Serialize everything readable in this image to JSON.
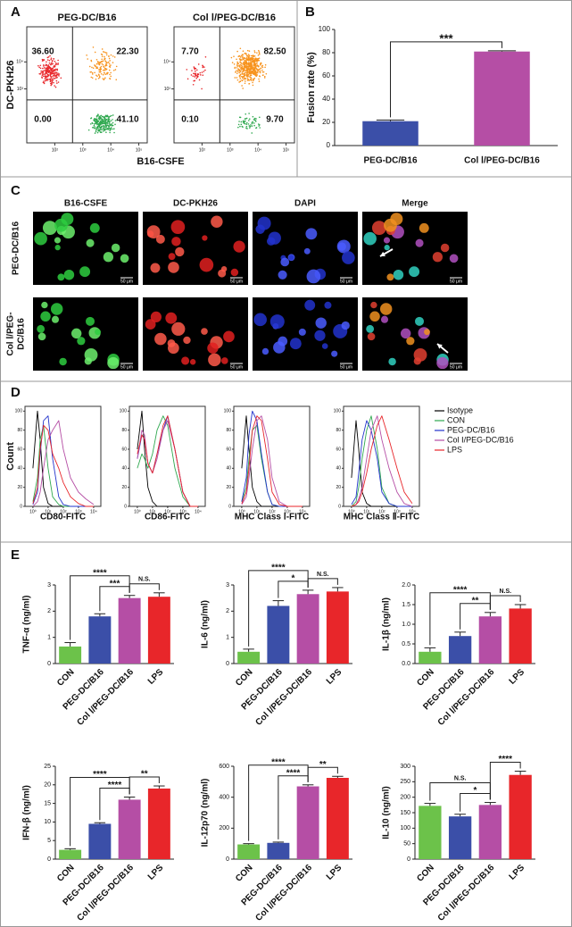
{
  "panel_labels": [
    "A",
    "B",
    "C",
    "D",
    "E"
  ],
  "microscopy": {
    "columns": [
      "B16-CSFE",
      "DC-PKH26",
      "DAPI",
      "Merge"
    ],
    "rows": [
      [
        "PEG-DC/B16"
      ],
      [
        "Col Ⅰ/PEG-",
        "DC/B16"
      ]
    ],
    "scale_bar": "50 μm"
  },
  "chart_data": [
    {
      "type": "flow",
      "title": "PEG-DC/B16",
      "x_label": "B16-CSFE",
      "y_label": "DC-PKH26",
      "log_scale": true,
      "xlim": [
        10,
        200000
      ],
      "ylim": [
        10,
        200000
      ],
      "xticks": [
        {
          "value": 100,
          "label": "10²"
        },
        {
          "value": 1000,
          "label": "10³"
        },
        {
          "value": 10000,
          "label": "10⁴"
        },
        {
          "value": 100000,
          "label": "10⁵"
        }
      ],
      "yticks": [
        {
          "value": 1000,
          "label": "10³"
        },
        {
          "value": 10000,
          "label": "10⁴"
        }
      ],
      "values": [
        36.6,
        22.3,
        0,
        41.1
      ],
      "value_labels": [
        "36.60",
        "22.30",
        "0.00",
        "41.10"
      ],
      "colors": [
        "#e8262a",
        "#f7931e",
        "#999999",
        "#2fa84f"
      ]
    },
    {
      "type": "flow",
      "title": "Col Ⅰ/PEG-DC/B16",
      "log_scale": true,
      "xlim": [
        10,
        200000
      ],
      "ylim": [
        10,
        200000
      ],
      "xticks": [
        {
          "value": 100,
          "label": "10²"
        },
        {
          "value": 1000,
          "label": "10³"
        },
        {
          "value": 10000,
          "label": "10⁴"
        },
        {
          "value": 100000,
          "label": "10⁵"
        }
      ],
      "yticks": [
        {
          "value": 1000,
          "label": "10³"
        },
        {
          "value": 10000,
          "label": "10⁴"
        }
      ],
      "values": [
        7.7,
        82.5,
        0.1,
        9.7
      ],
      "value_labels": [
        "7.70",
        "82.50",
        "0.10",
        "9.70"
      ],
      "colors": [
        "#e8262a",
        "#f7931e",
        "#999999",
        "#2fa84f"
      ]
    },
    {
      "type": "bar",
      "y_label": "Fusion rate (%)",
      "categories": [
        "PEG-DC/B16",
        "Col Ⅰ/PEG-DC/B16"
      ],
      "values": [
        21,
        81
      ],
      "errors": [
        1,
        0.6
      ],
      "colors": [
        "#3b4fa8",
        "#b54ea5"
      ],
      "ylim": [
        0,
        100
      ],
      "yticks": [
        0,
        20,
        40,
        60,
        80,
        100
      ],
      "annotations": [
        {
          "text": "***",
          "from": 0,
          "to": 1
        }
      ]
    },
    {
      "type": "line",
      "x_label": "CD80-FITC",
      "y_label": "Count",
      "legend": "outside-right",
      "log_scale": true,
      "xlim": [
        0.3,
        30000
      ],
      "ylim": [
        0,
        105
      ],
      "xticks": [
        {
          "value": 1,
          "label": "10⁰"
        },
        {
          "value": 10,
          "label": "10¹"
        },
        {
          "value": 100,
          "label": "10²"
        },
        {
          "value": 1000,
          "label": "10³"
        },
        {
          "value": 10000,
          "label": "10⁴"
        }
      ],
      "yticks": [
        0,
        20,
        40,
        60,
        80,
        100
      ],
      "x": [
        1,
        2,
        3,
        5,
        10,
        20,
        50,
        100,
        300,
        1000,
        3000,
        10000
      ],
      "series": [
        {
          "name": "Isotype",
          "color": "#000000",
          "values": [
            40,
            100,
            70,
            20,
            3,
            0,
            0,
            0,
            0,
            0,
            0,
            0
          ]
        },
        {
          "name": "CON",
          "color": "#2fa84f",
          "values": [
            5,
            30,
            70,
            85,
            40,
            10,
            2,
            0,
            0,
            0,
            0,
            0
          ]
        },
        {
          "name": "PEG-DC/B16",
          "color": "#2233cc",
          "values": [
            2,
            15,
            55,
            90,
            95,
            50,
            10,
            2,
            0,
            0,
            0,
            0
          ]
        },
        {
          "name": "Col Ⅰ/PEG-DC/B16",
          "color": "#b54ea5",
          "values": [
            0,
            5,
            15,
            40,
            70,
            80,
            90,
            60,
            30,
            15,
            8,
            2
          ]
        },
        {
          "name": "LPS",
          "color": "#e8262a",
          "values": [
            3,
            20,
            60,
            85,
            80,
            55,
            40,
            25,
            10,
            3,
            0,
            0
          ]
        }
      ]
    },
    {
      "type": "line",
      "x_label": "CD86-FITC",
      "log_scale": true,
      "xlim": [
        0.3,
        30000
      ],
      "ylim": [
        0,
        105
      ],
      "xticks": [
        {
          "value": 1,
          "label": "10⁰"
        },
        {
          "value": 10,
          "label": "10¹"
        },
        {
          "value": 100,
          "label": "10²"
        },
        {
          "value": 1000,
          "label": "10³"
        },
        {
          "value": 10000,
          "label": "10⁴"
        }
      ],
      "yticks": [
        0,
        20,
        40,
        60,
        80,
        100
      ],
      "x": [
        1,
        2,
        3,
        5,
        10,
        20,
        50,
        100,
        300,
        1000,
        3000,
        10000
      ],
      "series": [
        {
          "name": "Isotype",
          "color": "#000000",
          "values": [
            60,
            100,
            60,
            20,
            5,
            0,
            0,
            0,
            0,
            0,
            0,
            0
          ]
        },
        {
          "name": "CON",
          "color": "#2fa84f",
          "values": [
            40,
            55,
            50,
            40,
            55,
            80,
            95,
            85,
            40,
            10,
            0,
            0
          ]
        },
        {
          "name": "PEG-DC/B16",
          "color": "#2233cc",
          "values": [
            50,
            75,
            70,
            45,
            35,
            55,
            80,
            95,
            60,
            15,
            0,
            0
          ]
        },
        {
          "name": "Col Ⅰ/PEG-DC/B16",
          "color": "#b54ea5",
          "values": [
            50,
            80,
            75,
            45,
            35,
            50,
            80,
            90,
            60,
            15,
            0,
            0
          ]
        },
        {
          "name": "LPS",
          "color": "#e8262a",
          "values": [
            55,
            75,
            70,
            45,
            35,
            55,
            85,
            95,
            60,
            15,
            0,
            0
          ]
        }
      ]
    },
    {
      "type": "line",
      "x_label": "MHC Class Ⅰ-FITC",
      "log_scale": true,
      "xlim": [
        0.3,
        30000
      ],
      "ylim": [
        0,
        105
      ],
      "xticks": [
        {
          "value": 1,
          "label": "10⁰"
        },
        {
          "value": 10,
          "label": "10¹"
        },
        {
          "value": 100,
          "label": "10²"
        },
        {
          "value": 1000,
          "label": "10³"
        },
        {
          "value": 10000,
          "label": "10⁴"
        }
      ],
      "yticks": [
        0,
        20,
        40,
        60,
        80,
        100
      ],
      "x": [
        1,
        2,
        3,
        5,
        10,
        20,
        50,
        100,
        300,
        1000,
        3000,
        10000
      ],
      "series": [
        {
          "name": "Isotype",
          "color": "#000000",
          "values": [
            40,
            95,
            60,
            20,
            5,
            0,
            0,
            0,
            0,
            0,
            0,
            0
          ]
        },
        {
          "name": "CON",
          "color": "#2fa84f",
          "values": [
            5,
            20,
            50,
            80,
            85,
            50,
            15,
            2,
            0,
            0,
            0,
            0
          ]
        },
        {
          "name": "PEG-DC/B16",
          "color": "#2233cc",
          "values": [
            5,
            30,
            75,
            100,
            90,
            55,
            15,
            2,
            0,
            0,
            0,
            0
          ]
        },
        {
          "name": "Col Ⅰ/PEG-DC/B16",
          "color": "#b54ea5",
          "values": [
            2,
            10,
            30,
            60,
            90,
            95,
            70,
            30,
            5,
            0,
            0,
            0
          ]
        },
        {
          "name": "LPS",
          "color": "#e8262a",
          "values": [
            3,
            15,
            40,
            80,
            95,
            90,
            50,
            15,
            2,
            0,
            0,
            0
          ]
        }
      ]
    },
    {
      "type": "line",
      "x_label": "MHC Class Ⅱ-FITC",
      "log_scale": true,
      "xlim": [
        0.3,
        30000
      ],
      "ylim": [
        0,
        105
      ],
      "xticks": [
        {
          "value": 1,
          "label": "10⁰"
        },
        {
          "value": 10,
          "label": "10¹"
        },
        {
          "value": 100,
          "label": "10²"
        },
        {
          "value": 1000,
          "label": "10³"
        },
        {
          "value": 10000,
          "label": "10⁴"
        }
      ],
      "yticks": [
        0,
        20,
        40,
        60,
        80,
        100
      ],
      "x": [
        1,
        2,
        3,
        5,
        10,
        20,
        50,
        100,
        300,
        1000,
        3000,
        10000
      ],
      "series": [
        {
          "name": "Isotype",
          "color": "#000000",
          "values": [
            30,
            90,
            60,
            15,
            3,
            0,
            0,
            0,
            0,
            0,
            0,
            0
          ]
        },
        {
          "name": "CON",
          "color": "#2fa84f",
          "values": [
            0,
            5,
            20,
            50,
            80,
            95,
            60,
            20,
            3,
            0,
            0,
            0
          ]
        },
        {
          "name": "PEG-DC/B16",
          "color": "#2233cc",
          "values": [
            2,
            10,
            35,
            70,
            90,
            80,
            50,
            15,
            3,
            0,
            0,
            0
          ]
        },
        {
          "name": "Col Ⅰ/PEG-DC/B16",
          "color": "#b54ea5",
          "values": [
            0,
            2,
            8,
            20,
            50,
            80,
            95,
            70,
            40,
            15,
            3,
            0
          ]
        },
        {
          "name": "LPS",
          "color": "#e8262a",
          "values": [
            0,
            2,
            5,
            15,
            35,
            60,
            85,
            95,
            70,
            40,
            15,
            3
          ]
        }
      ]
    },
    {
      "type": "bar",
      "y_label": "TNF-α (ng/ml)",
      "categories": [
        "CON",
        "PEG-DC/B16",
        "Col Ⅰ/PEG-DC/B16",
        "LPS"
      ],
      "colors": [
        "#6cc24a",
        "#3b4fa8",
        "#b54ea5",
        "#e8262a"
      ],
      "values": [
        0.65,
        1.8,
        2.5,
        2.55
      ],
      "errors": [
        0.15,
        0.1,
        0.1,
        0.15
      ],
      "ylim": [
        0,
        3
      ],
      "yticks": [
        0,
        1,
        2,
        3
      ],
      "annotations": [
        {
          "text": "****",
          "from": 0,
          "to": 2
        },
        {
          "text": "***",
          "from": 1,
          "to": 2
        },
        {
          "text": "N.S.",
          "from": 2,
          "to": 3
        }
      ]
    },
    {
      "type": "bar",
      "y_label": "IL-6 (ng/ml)",
      "categories": [
        "CON",
        "PEG-DC/B16",
        "Col Ⅰ/PEG-DC/B16",
        "LPS"
      ],
      "colors": [
        "#6cc24a",
        "#3b4fa8",
        "#b54ea5",
        "#e8262a"
      ],
      "values": [
        0.45,
        2.2,
        2.65,
        2.75
      ],
      "errors": [
        0.1,
        0.2,
        0.15,
        0.15
      ],
      "ylim": [
        0,
        3
      ],
      "yticks": [
        0,
        1,
        2,
        3
      ],
      "annotations": [
        {
          "text": "****",
          "from": 0,
          "to": 2
        },
        {
          "text": "*",
          "from": 1,
          "to": 2
        },
        {
          "text": "N.S.",
          "from": 2,
          "to": 3
        }
      ]
    },
    {
      "type": "bar",
      "y_label": "IL-1β (ng/ml)",
      "categories": [
        "CON",
        "PEG-DC/B16",
        "Col Ⅰ/PEG-DC/B16",
        "LPS"
      ],
      "colors": [
        "#6cc24a",
        "#3b4fa8",
        "#b54ea5",
        "#e8262a"
      ],
      "values": [
        0.3,
        0.7,
        1.2,
        1.4
      ],
      "errors": [
        0.1,
        0.1,
        0.1,
        0.1
      ],
      "ylim": [
        0,
        2
      ],
      "yticks": [
        {
          "value": 0,
          "label": "0.0"
        },
        0.5,
        {
          "value": 1,
          "label": "1.0"
        },
        1.5,
        {
          "value": 2,
          "label": "2.0"
        }
      ],
      "annotations": [
        {
          "text": "****",
          "from": 0,
          "to": 2
        },
        {
          "text": "**",
          "from": 1,
          "to": 2
        },
        {
          "text": "N.S.",
          "from": 2,
          "to": 3
        }
      ]
    },
    {
      "type": "bar",
      "y_label": "IFN-β (ng/ml)",
      "categories": [
        "CON",
        "PEG-DC/B16",
        "Col Ⅰ/PEG-DC/B16",
        "LPS"
      ],
      "colors": [
        "#6cc24a",
        "#3b4fa8",
        "#b54ea5",
        "#e8262a"
      ],
      "values": [
        2.5,
        9.5,
        16,
        19
      ],
      "errors": [
        0.3,
        0.3,
        0.7,
        0.7
      ],
      "ylim": [
        0,
        25
      ],
      "yticks": [
        0,
        5,
        10,
        15,
        20,
        25
      ],
      "annotations": [
        {
          "text": "****",
          "from": 0,
          "to": 2
        },
        {
          "text": "****",
          "from": 1,
          "to": 2
        },
        {
          "text": "**",
          "from": 2,
          "to": 3
        }
      ]
    },
    {
      "type": "bar",
      "y_label": "IL-12p70 (ng/ml)",
      "categories": [
        "CON",
        "PEG-DC/B16",
        "Col Ⅰ/PEG-DC/B16",
        "LPS"
      ],
      "colors": [
        "#6cc24a",
        "#3b4fa8",
        "#b54ea5",
        "#e8262a"
      ],
      "values": [
        95,
        105,
        470,
        525
      ],
      "errors": [
        5,
        5,
        10,
        10
      ],
      "ylim": [
        0,
        600
      ],
      "yticks": [
        0,
        200,
        400,
        600
      ],
      "annotations": [
        {
          "text": "****",
          "from": 0,
          "to": 2
        },
        {
          "text": "****",
          "from": 1,
          "to": 2
        },
        {
          "text": "**",
          "from": 2,
          "to": 3
        }
      ]
    },
    {
      "type": "bar",
      "y_label": "IL-10 (ng/ml)",
      "categories": [
        "CON",
        "PEG-DC/B16",
        "Col Ⅰ/PEG-DC/B16",
        "LPS"
      ],
      "colors": [
        "#6cc24a",
        "#3b4fa8",
        "#b54ea5",
        "#e8262a"
      ],
      "values": [
        172,
        138,
        175,
        272
      ],
      "errors": [
        8,
        7,
        8,
        12
      ],
      "ylim": [
        0,
        300
      ],
      "yticks": [
        0,
        50,
        100,
        150,
        200,
        250,
        300
      ],
      "annotations": [
        {
          "text": "N.S.",
          "from": 0,
          "to": 2
        },
        {
          "text": "*",
          "from": 1,
          "to": 2
        },
        {
          "text": "****",
          "from": 2,
          "to": 3
        }
      ]
    }
  ]
}
